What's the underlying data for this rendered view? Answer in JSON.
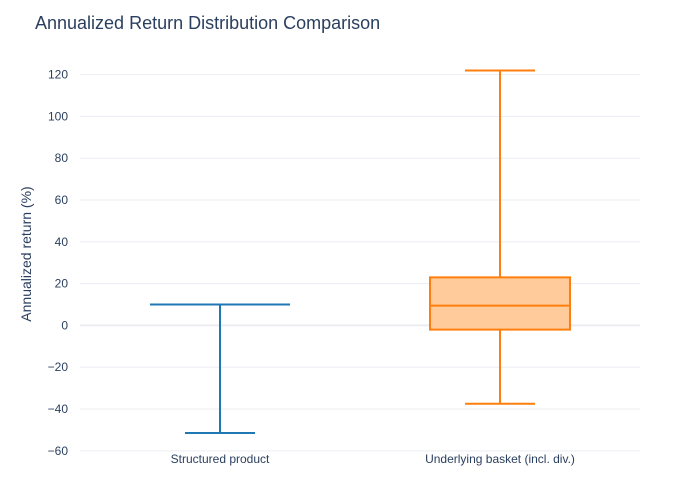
{
  "chart_data": {
    "type": "box",
    "title": "Annualized Return Distribution Comparison",
    "xlabel": "",
    "ylabel": "Annualized return (%)",
    "ylim": [
      -62,
      127
    ],
    "yticks": [
      120,
      100,
      80,
      60,
      40,
      20,
      0,
      -20,
      -40,
      -60
    ],
    "ytick_labels": [
      "120",
      "100",
      "80",
      "60",
      "40",
      "20",
      "0",
      "−20",
      "−40",
      "−60"
    ],
    "categories": [
      "Structured product",
      "Underlying basket (incl. div.)"
    ],
    "boxes": [
      {
        "category": "Structured product",
        "min": -51.5,
        "q1": 10,
        "median": 10,
        "q3": 10,
        "max": 10,
        "color": "#1f77b4",
        "fill": "#1f77b4"
      },
      {
        "category": "Underlying basket (incl. div.)",
        "min": -37.5,
        "q1": -2,
        "median": 9.5,
        "q3": 23,
        "max": 122,
        "color": "#ff7f0e",
        "fill": "#ffcb9b"
      }
    ],
    "grid": true,
    "legend": "none"
  }
}
